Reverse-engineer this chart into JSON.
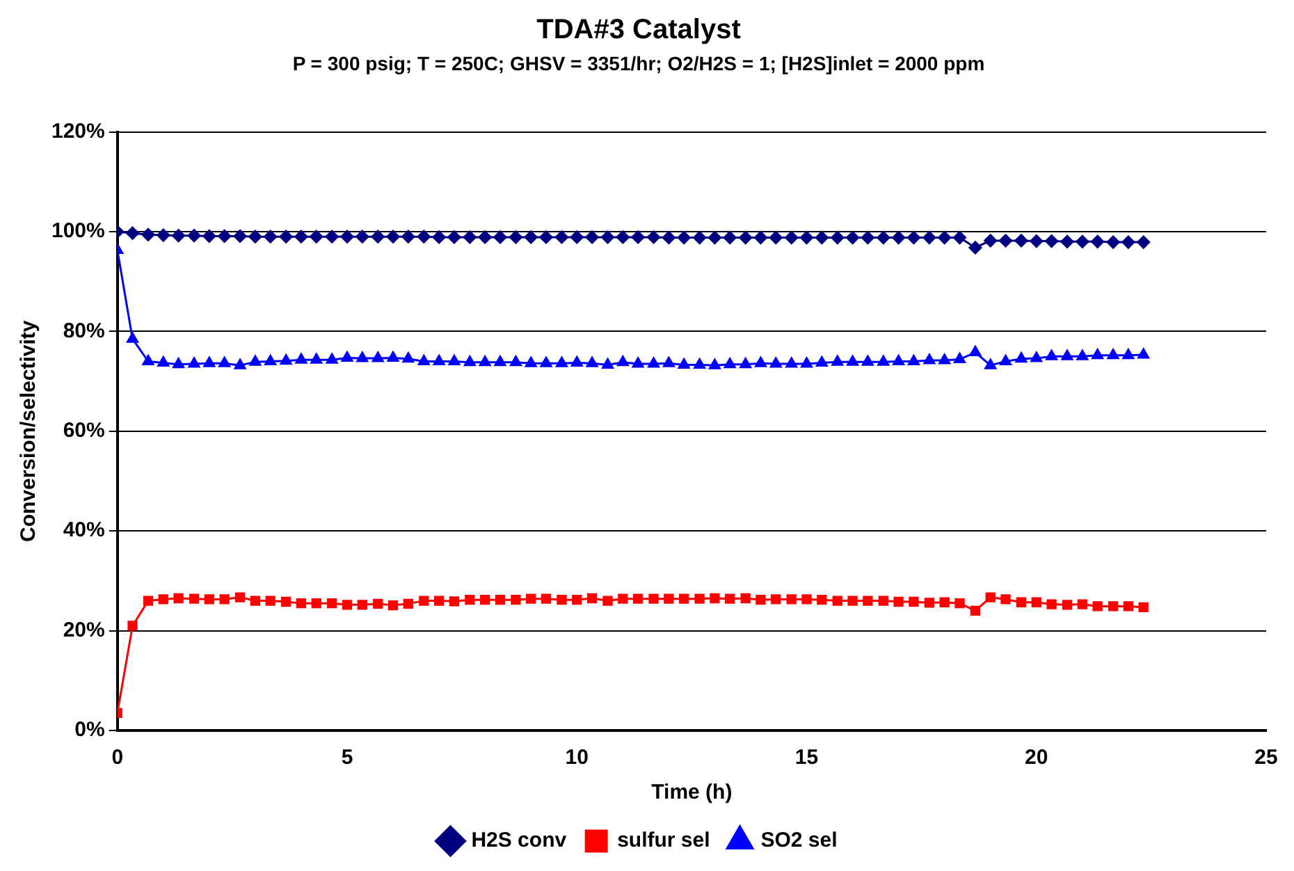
{
  "chart_data": {
    "type": "line",
    "title": "TDA#3 Catalyst",
    "subtitle": "P = 300 psig; T = 250C; GHSV = 3351/hr; O2/H2S = 1; [H2S]inlet = 2000 ppm",
    "xlabel": "Time (h)",
    "ylabel": "Conversion/selectivity",
    "x": [
      0,
      0.33,
      0.67,
      1,
      1.33,
      1.67,
      2,
      2.33,
      2.67,
      3,
      3.33,
      3.67,
      4,
      4.33,
      4.67,
      5,
      5.33,
      5.67,
      6,
      6.33,
      6.67,
      7,
      7.33,
      7.67,
      8,
      8.33,
      8.67,
      9,
      9.33,
      9.67,
      10,
      10.33,
      10.67,
      11,
      11.33,
      11.67,
      12,
      12.33,
      12.67,
      13,
      13.33,
      13.67,
      14,
      14.33,
      14.67,
      15,
      15.33,
      15.67,
      16,
      16.33,
      16.67,
      17,
      17.33,
      17.67,
      18,
      18.33,
      18.67,
      19,
      19.33,
      19.67,
      20,
      20.33,
      20.67,
      21,
      21.33,
      21.67,
      22,
      22.33
    ],
    "series": [
      {
        "name": "H2S conv",
        "color": "#000080",
        "marker": "diamond",
        "values": [
          100,
          99.7,
          99.4,
          99.3,
          99.2,
          99.2,
          99.1,
          99.1,
          99.1,
          99,
          99,
          99,
          99,
          99,
          99,
          99,
          99,
          99,
          99,
          99,
          99,
          98.9,
          98.9,
          98.9,
          98.9,
          98.9,
          98.9,
          98.9,
          98.9,
          98.9,
          98.9,
          98.9,
          98.9,
          98.9,
          98.9,
          98.9,
          98.8,
          98.8,
          98.8,
          98.8,
          98.8,
          98.8,
          98.8,
          98.8,
          98.8,
          98.8,
          98.8,
          98.8,
          98.8,
          98.8,
          98.8,
          98.8,
          98.8,
          98.8,
          98.8,
          98.8,
          96.8,
          98.2,
          98.2,
          98.2,
          98.1,
          98.1,
          98,
          98,
          98,
          97.9,
          97.9,
          97.9
        ]
      },
      {
        "name": "sulfur sel",
        "color": "#ff0000",
        "marker": "square",
        "values": [
          3.5,
          21,
          26,
          26.3,
          26.5,
          26.4,
          26.3,
          26.3,
          26.7,
          26,
          26,
          25.8,
          25.5,
          25.5,
          25.5,
          25.2,
          25.2,
          25.4,
          25.1,
          25.4,
          26,
          26,
          25.9,
          26.2,
          26.2,
          26.2,
          26.2,
          26.4,
          26.4,
          26.2,
          26.2,
          26.5,
          26,
          26.4,
          26.4,
          26.4,
          26.4,
          26.4,
          26.4,
          26.5,
          26.4,
          26.5,
          26.2,
          26.3,
          26.3,
          26.3,
          26.2,
          26,
          26,
          26,
          26,
          25.8,
          25.8,
          25.6,
          25.7,
          25.5,
          24,
          26.7,
          26.3,
          25.7,
          25.7,
          25.3,
          25.2,
          25.3,
          24.9,
          24.9,
          24.9,
          24.7
        ]
      },
      {
        "name": "SO2 sel",
        "color": "#0000ff",
        "marker": "triangle",
        "values": [
          96.3,
          78.5,
          74,
          73.7,
          73.4,
          73.5,
          73.6,
          73.6,
          73.2,
          73.9,
          74,
          74.1,
          74.3,
          74.3,
          74.3,
          74.7,
          74.6,
          74.6,
          74.7,
          74.5,
          74,
          74,
          74,
          73.8,
          73.8,
          73.8,
          73.8,
          73.6,
          73.6,
          73.6,
          73.7,
          73.6,
          73.3,
          73.8,
          73.5,
          73.5,
          73.6,
          73.3,
          73.3,
          73.2,
          73.4,
          73.4,
          73.6,
          73.5,
          73.5,
          73.5,
          73.7,
          73.9,
          73.9,
          73.9,
          73.9,
          74,
          74,
          74.2,
          74.2,
          74.4,
          75.8,
          73.2,
          74,
          74.5,
          74.6,
          75,
          75,
          75,
          75.2,
          75.2,
          75.2,
          75.3
        ]
      }
    ],
    "xlim": [
      0,
      25
    ],
    "xticks": [
      0,
      5,
      10,
      15,
      20,
      25
    ],
    "ylim": [
      0,
      120
    ],
    "yticks": [
      {
        "value": 0,
        "label": "0%"
      },
      {
        "value": 20,
        "label": "20%"
      },
      {
        "value": 40,
        "label": "40%"
      },
      {
        "value": 60,
        "label": "60%"
      },
      {
        "value": 80,
        "label": "80%"
      },
      {
        "value": 100,
        "label": "100%"
      },
      {
        "value": 120,
        "label": "120%"
      }
    ],
    "grid": "y",
    "legend": "bottom",
    "line_style": "solid"
  }
}
